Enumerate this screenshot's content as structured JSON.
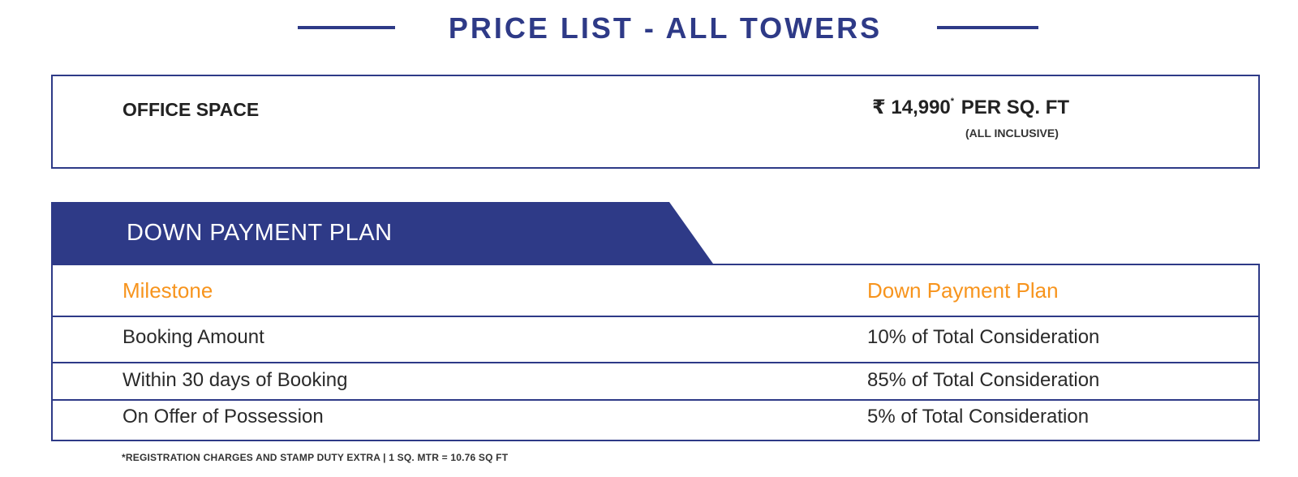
{
  "header": {
    "title": "PRICE LIST - ALL TOWERS"
  },
  "office": {
    "label": "OFFICE SPACE",
    "currency": "₹",
    "price": "14,990",
    "asterisk": "*",
    "unit": "PER SQ. FT",
    "note": "(ALL INCLUSIVE)"
  },
  "plan": {
    "banner": "DOWN PAYMENT PLAN",
    "headers": [
      "Milestone",
      "Down Payment Plan"
    ],
    "rows": [
      {
        "milestone": "Booking Amount",
        "payment": "10% of Total Consideration"
      },
      {
        "milestone": "Within 30 days of Booking",
        "payment": "85% of Total Consideration"
      },
      {
        "milestone": "On Offer of Possession",
        "payment": "5% of Total Consideration"
      }
    ]
  },
  "footnote": "*REGISTRATION CHARGES AND STAMP DUTY EXTRA | 1 SQ. MTR = 10.76 SQ FT",
  "colors": {
    "brand_blue": "#2e3a87",
    "accent_orange": "#f7941d"
  }
}
